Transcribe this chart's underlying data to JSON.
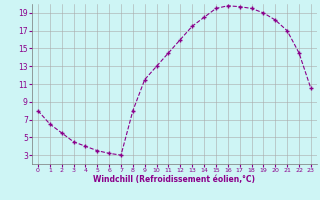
{
  "x": [
    0,
    1,
    2,
    3,
    4,
    5,
    6,
    7,
    8,
    9,
    10,
    11,
    12,
    13,
    14,
    15,
    16,
    17,
    18,
    19,
    20,
    21,
    22,
    23
  ],
  "y": [
    8.0,
    6.5,
    5.5,
    4.5,
    4.0,
    3.5,
    3.2,
    3.0,
    8.0,
    11.5,
    13.0,
    14.5,
    16.0,
    17.5,
    18.5,
    19.5,
    19.8,
    19.7,
    19.5,
    19.0,
    18.2,
    17.0,
    14.5,
    10.5
  ],
  "line_color": "#8B008B",
  "marker": "+",
  "bg_color": "#cef5f5",
  "grid_color": "#aaaaaa",
  "xlabel": "Windchill (Refroidissement éolien,°C)",
  "xlabel_color": "#8B008B",
  "tick_color": "#8B008B",
  "ylim": [
    2,
    20
  ],
  "xlim": [
    -0.5,
    23.5
  ],
  "yticks": [
    3,
    5,
    7,
    9,
    11,
    13,
    15,
    17,
    19
  ],
  "xticks": [
    0,
    1,
    2,
    3,
    4,
    5,
    6,
    7,
    8,
    9,
    10,
    11,
    12,
    13,
    14,
    15,
    16,
    17,
    18,
    19,
    20,
    21,
    22,
    23
  ],
  "figsize": [
    3.2,
    2.0
  ],
  "dpi": 100
}
